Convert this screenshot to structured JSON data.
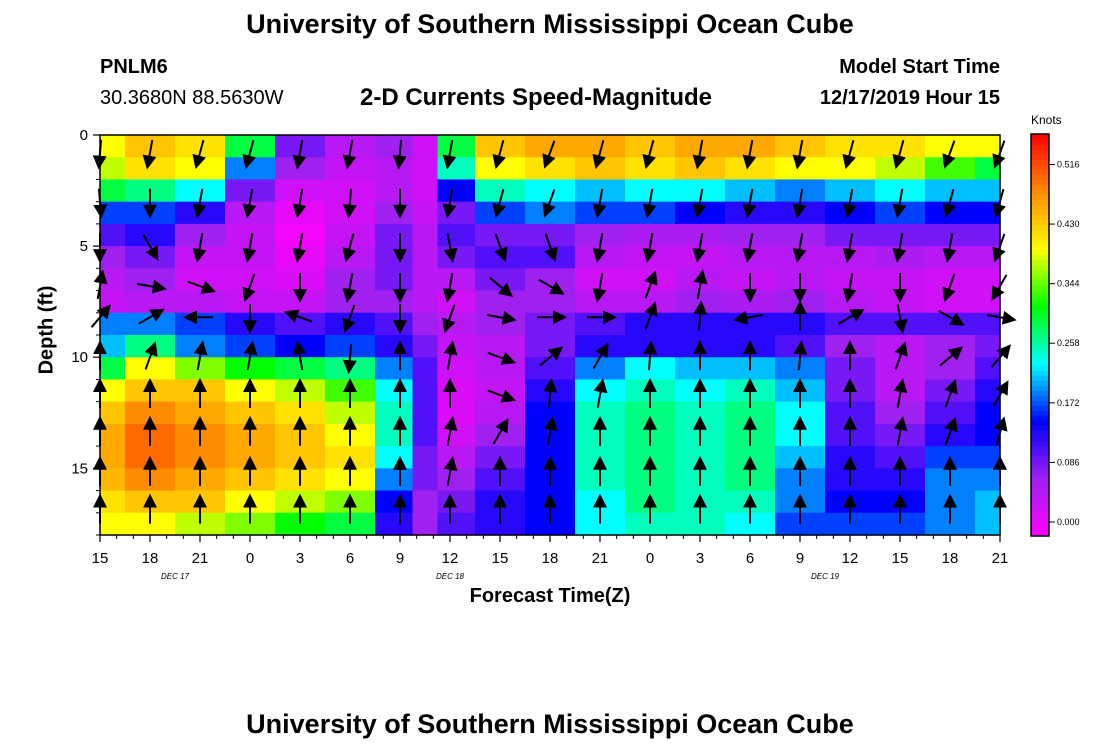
{
  "header": {
    "title": "University of Southern Mississippi Ocean Cube",
    "station": "PNLM6",
    "coords": "30.3680N 88.5630W",
    "subtitle": "2-D Currents Speed-Magnitude",
    "start_label": "Model Start Time",
    "start_time": "12/17/2019 Hour 15",
    "footer_title": "University of Southern Mississippi Ocean Cube"
  },
  "colors": {
    "scale": [
      "#ff00ff",
      "#a020f0",
      "#0000ff",
      "#00ffff",
      "#00ff00",
      "#ffff00",
      "#ff8c00",
      "#ff0000"
    ],
    "arrow": "#000000"
  },
  "chart_data": {
    "type": "heatmap",
    "title": "2-D Currents Speed-Magnitude",
    "xlabel": "Forecast Time(Z)",
    "ylabel": "Depth (ft)",
    "x_ticks": [
      "15",
      "18",
      "21",
      "0",
      "3",
      "6",
      "9",
      "12",
      "15",
      "18",
      "21",
      "0",
      "3",
      "6",
      "9",
      "12",
      "15",
      "18",
      "21"
    ],
    "x_range_hours": [
      0,
      54
    ],
    "y_ticks": [
      0,
      5,
      10,
      15
    ],
    "y_range_ft": [
      0,
      18
    ],
    "date_labels": [
      {
        "text": "DEC 17",
        "hour": 4.5
      },
      {
        "text": "DEC 18",
        "hour": 21
      },
      {
        "text": "DEC 19",
        "hour": 43.5
      }
    ],
    "colorbar": {
      "units": "Knots",
      "min": 0.0,
      "max": 0.56,
      "ticks": [
        "0.000",
        "0.086",
        "0.172",
        "0.258",
        "0.344",
        "0.430",
        "0.516"
      ]
    },
    "depth_layers_ft": [
      0.5,
      1.5,
      2.5,
      3.5,
      4.5,
      5.5,
      6.5,
      7.5,
      8.5,
      9.5,
      10.5,
      11.5,
      12.5,
      13.5,
      14.5,
      15.5,
      16.5,
      17.5
    ],
    "speed_columns": [
      {
        "hour": 0,
        "speeds": [
          0.4,
          0.38,
          0.3,
          0.18,
          0.12,
          0.08,
          0.06,
          0.05,
          0.2,
          0.22,
          0.3,
          0.4,
          0.44,
          0.46,
          0.46,
          0.45,
          0.42,
          0.4
        ]
      },
      {
        "hour": 3,
        "speeds": [
          0.44,
          0.42,
          0.28,
          0.18,
          0.14,
          0.1,
          0.08,
          0.06,
          0.2,
          0.28,
          0.4,
          0.44,
          0.48,
          0.5,
          0.5,
          0.48,
          0.44,
          0.4
        ]
      },
      {
        "hour": 6,
        "speeds": [
          0.42,
          0.4,
          0.24,
          0.14,
          0.08,
          0.05,
          0.04,
          0.06,
          0.18,
          0.2,
          0.36,
          0.44,
          0.46,
          0.48,
          0.48,
          0.46,
          0.44,
          0.38
        ]
      },
      {
        "hour": 9,
        "speeds": [
          0.3,
          0.2,
          0.1,
          0.06,
          0.05,
          0.05,
          0.04,
          0.05,
          0.14,
          0.18,
          0.32,
          0.4,
          0.44,
          0.46,
          0.46,
          0.44,
          0.4,
          0.36
        ]
      },
      {
        "hour": 12,
        "speeds": [
          0.1,
          0.08,
          0.04,
          0.02,
          0.01,
          0.02,
          0.03,
          0.05,
          0.12,
          0.16,
          0.3,
          0.38,
          0.42,
          0.44,
          0.44,
          0.42,
          0.38,
          0.32
        ]
      },
      {
        "hour": 15,
        "speeds": [
          0.06,
          0.05,
          0.04,
          0.04,
          0.05,
          0.06,
          0.08,
          0.08,
          0.14,
          0.18,
          0.28,
          0.34,
          0.38,
          0.4,
          0.42,
          0.4,
          0.36,
          0.3
        ]
      },
      {
        "hour": 18,
        "speeds": [
          0.08,
          0.06,
          0.06,
          0.08,
          0.1,
          0.1,
          0.1,
          0.08,
          0.12,
          0.14,
          0.2,
          0.24,
          0.26,
          0.26,
          0.24,
          0.2,
          0.16,
          0.14
        ]
      },
      {
        "hour": 19.5,
        "speeds": [
          0.04,
          0.04,
          0.04,
          0.05,
          0.06,
          0.06,
          0.06,
          0.06,
          0.08,
          0.1,
          0.12,
          0.12,
          0.12,
          0.12,
          0.1,
          0.1,
          0.08,
          0.08
        ]
      },
      {
        "hour": 21,
        "speeds": [
          0.3,
          0.26,
          0.16,
          0.1,
          0.12,
          0.1,
          0.06,
          0.04,
          0.06,
          0.05,
          0.04,
          0.03,
          0.03,
          0.04,
          0.06,
          0.08,
          0.1,
          0.12
        ]
      },
      {
        "hour": 24,
        "speeds": [
          0.44,
          0.4,
          0.26,
          0.18,
          0.1,
          0.12,
          0.1,
          0.08,
          0.08,
          0.06,
          0.06,
          0.05,
          0.06,
          0.08,
          0.1,
          0.12,
          0.14,
          0.14
        ]
      },
      {
        "hour": 27,
        "speeds": [
          0.46,
          0.42,
          0.24,
          0.2,
          0.1,
          0.12,
          0.08,
          0.08,
          0.1,
          0.1,
          0.12,
          0.14,
          0.16,
          0.16,
          0.16,
          0.16,
          0.16,
          0.16
        ]
      },
      {
        "hour": 30,
        "speeds": [
          0.46,
          0.44,
          0.22,
          0.18,
          0.08,
          0.06,
          0.04,
          0.06,
          0.12,
          0.14,
          0.2,
          0.24,
          0.26,
          0.26,
          0.26,
          0.26,
          0.24,
          0.24
        ]
      },
      {
        "hour": 33,
        "speeds": [
          0.44,
          0.42,
          0.24,
          0.18,
          0.07,
          0.05,
          0.04,
          0.06,
          0.14,
          0.14,
          0.24,
          0.26,
          0.28,
          0.28,
          0.28,
          0.28,
          0.28,
          0.26
        ]
      },
      {
        "hour": 36,
        "speeds": [
          0.46,
          0.44,
          0.24,
          0.16,
          0.07,
          0.05,
          0.06,
          0.08,
          0.14,
          0.14,
          0.22,
          0.24,
          0.26,
          0.26,
          0.26,
          0.26,
          0.26,
          0.26
        ]
      },
      {
        "hour": 39,
        "speeds": [
          0.46,
          0.42,
          0.22,
          0.14,
          0.08,
          0.06,
          0.05,
          0.07,
          0.14,
          0.14,
          0.22,
          0.26,
          0.28,
          0.28,
          0.28,
          0.28,
          0.26,
          0.24
        ]
      },
      {
        "hour": 42,
        "speeds": [
          0.44,
          0.4,
          0.2,
          0.14,
          0.08,
          0.06,
          0.06,
          0.08,
          0.14,
          0.12,
          0.2,
          0.22,
          0.24,
          0.24,
          0.22,
          0.2,
          0.2,
          0.18
        ]
      },
      {
        "hour": 45,
        "speeds": [
          0.42,
          0.4,
          0.22,
          0.16,
          0.1,
          0.06,
          0.05,
          0.06,
          0.12,
          0.08,
          0.1,
          0.1,
          0.12,
          0.12,
          0.14,
          0.14,
          0.16,
          0.18
        ]
      },
      {
        "hour": 48,
        "speeds": [
          0.42,
          0.38,
          0.24,
          0.18,
          0.1,
          0.07,
          0.05,
          0.05,
          0.12,
          0.06,
          0.06,
          0.06,
          0.08,
          0.1,
          0.12,
          0.14,
          0.16,
          0.18
        ]
      },
      {
        "hour": 51,
        "speeds": [
          0.4,
          0.34,
          0.22,
          0.16,
          0.1,
          0.06,
          0.04,
          0.04,
          0.12,
          0.08,
          0.08,
          0.1,
          0.12,
          0.14,
          0.18,
          0.2,
          0.2,
          0.2
        ]
      },
      {
        "hour": 54,
        "speeds": [
          0.4,
          0.3,
          0.22,
          0.16,
          0.1,
          0.06,
          0.04,
          0.04,
          0.12,
          0.1,
          0.12,
          0.14,
          0.16,
          0.16,
          0.18,
          0.2,
          0.22,
          0.22
        ]
      }
    ],
    "vector_depths_ft": [
      0.8,
      3.0,
      5.0,
      6.8,
      8.2,
      10.0,
      11.7,
      13.4,
      15.2,
      16.9
    ],
    "vectors": [
      {
        "hour": 0,
        "dirs": [
          185,
          175,
          180,
          10,
          40,
          0,
          0,
          0,
          0,
          0
        ]
      },
      {
        "hour": 3,
        "dirs": [
          190,
          180,
          150,
          100,
          60,
          20,
          0,
          0,
          0,
          0
        ]
      },
      {
        "hour": 6,
        "dirs": [
          195,
          190,
          190,
          110,
          270,
          10,
          0,
          0,
          0,
          0
        ]
      },
      {
        "hour": 9,
        "dirs": [
          195,
          190,
          190,
          200,
          180,
          10,
          0,
          0,
          0,
          0
        ]
      },
      {
        "hour": 12,
        "dirs": [
          190,
          190,
          190,
          180,
          290,
          350,
          0,
          0,
          0,
          0
        ]
      },
      {
        "hour": 15,
        "dirs": [
          190,
          185,
          195,
          190,
          200,
          185,
          0,
          0,
          0,
          0
        ]
      },
      {
        "hour": 18,
        "dirs": [
          185,
          180,
          180,
          180,
          180,
          0,
          0,
          0,
          0,
          0
        ]
      },
      {
        "hour": 21,
        "dirs": [
          190,
          190,
          170,
          190,
          200,
          10,
          0,
          10,
          10,
          0
        ]
      },
      {
        "hour": 24,
        "dirs": [
          195,
          195,
          160,
          130,
          100,
          110,
          110,
          30,
          0,
          0
        ]
      },
      {
        "hour": 27,
        "dirs": [
          200,
          200,
          160,
          120,
          90,
          50,
          5,
          10,
          0,
          0
        ]
      },
      {
        "hour": 30,
        "dirs": [
          195,
          190,
          190,
          190,
          90,
          30,
          10,
          0,
          0,
          0
        ]
      },
      {
        "hour": 33,
        "dirs": [
          195,
          190,
          190,
          20,
          20,
          5,
          0,
          0,
          0,
          0
        ]
      },
      {
        "hour": 36,
        "dirs": [
          190,
          190,
          190,
          10,
          5,
          0,
          0,
          0,
          0,
          0
        ]
      },
      {
        "hour": 39,
        "dirs": [
          190,
          190,
          190,
          180,
          260,
          0,
          0,
          0,
          0,
          0
        ]
      },
      {
        "hour": 42,
        "dirs": [
          190,
          190,
          190,
          180,
          0,
          5,
          0,
          0,
          0,
          0
        ]
      },
      {
        "hour": 45,
        "dirs": [
          195,
          190,
          190,
          190,
          60,
          0,
          0,
          0,
          0,
          0
        ]
      },
      {
        "hour": 48,
        "dirs": [
          195,
          190,
          190,
          180,
          170,
          20,
          10,
          10,
          0,
          0
        ]
      },
      {
        "hour": 51,
        "dirs": [
          200,
          195,
          190,
          200,
          120,
          50,
          20,
          20,
          0,
          0
        ]
      },
      {
        "hour": 54,
        "dirs": [
          200,
          195,
          200,
          210,
          100,
          40,
          30,
          15,
          0,
          0
        ]
      }
    ]
  }
}
